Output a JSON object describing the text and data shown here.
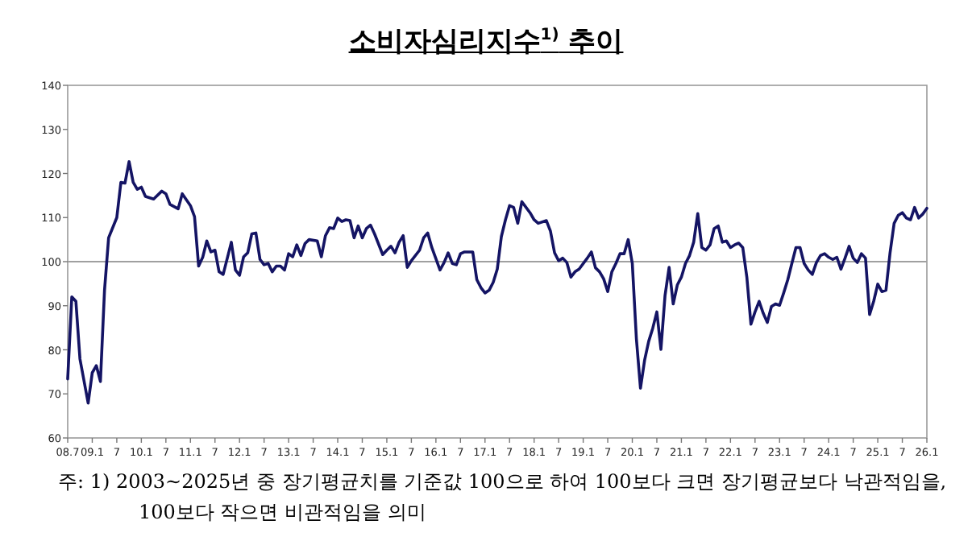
{
  "chart_data": {
    "type": "line",
    "title": "소비자심리지수$^{1)}$ 추이",
    "x": [
      "2008-07",
      "2008-08",
      "2008-09",
      "2008-10",
      "2008-12",
      "2009-01",
      "2009-02",
      "2009-03",
      "2009-04",
      "2009-05",
      "2009-07",
      "2009-08",
      "2009-09",
      "2009-10",
      "2009-11",
      "2009-12",
      "2010-01",
      "2010-02",
      "2010-04",
      "2010-06",
      "2010-07",
      "2010-08",
      "2010-10",
      "2010-11",
      "2011-01",
      "2011-02",
      "2011-03",
      "2011-04",
      "2011-05",
      "2011-06",
      "2011-07",
      "2011-08",
      "2011-09",
      "2011-11",
      "2011-12",
      "2012-01",
      "2012-02",
      "2012-03",
      "2012-04",
      "2012-05",
      "2012-06",
      "2012-07",
      "2012-08",
      "2012-09",
      "2012-10",
      "2012-11",
      "2012-12",
      "2013-01",
      "2013-02",
      "2013-03",
      "2013-04",
      "2013-05",
      "2013-06",
      "2013-08",
      "2013-09",
      "2013-10",
      "2013-11",
      "2013-12",
      "2014-01",
      "2014-02",
      "2014-03",
      "2014-04",
      "2014-05",
      "2014-06",
      "2014-07",
      "2014-08",
      "2014-09",
      "2014-10",
      "2014-12",
      "2015-01",
      "2015-02",
      "2015-03",
      "2015-04",
      "2015-05",
      "2015-06",
      "2015-07",
      "2015-09",
      "2015-10",
      "2015-11",
      "2015-12",
      "2016-02",
      "2016-03",
      "2016-04",
      "2016-05",
      "2016-06",
      "2016-07",
      "2016-08",
      "2016-10",
      "2016-11",
      "2016-12",
      "2017-01",
      "2017-02",
      "2017-03",
      "2017-04",
      "2017-05",
      "2017-06",
      "2017-07",
      "2017-08",
      "2017-09",
      "2017-10",
      "2017-12",
      "2018-01",
      "2018-02",
      "2018-04",
      "2018-05",
      "2018-06",
      "2018-07",
      "2018-08",
      "2018-09",
      "2018-10",
      "2018-11",
      "2018-12",
      "2019-02",
      "2019-03",
      "2019-04",
      "2019-05",
      "2019-06",
      "2019-07",
      "2019-08",
      "2019-09",
      "2019-10",
      "2019-11",
      "2019-12",
      "2020-01",
      "2020-02",
      "2020-03",
      "2020-04",
      "2020-05",
      "2020-06",
      "2020-07",
      "2020-08",
      "2020-09",
      "2020-10",
      "2020-11",
      "2020-12",
      "2021-01",
      "2021-02",
      "2021-03",
      "2021-04",
      "2021-05",
      "2021-06",
      "2021-07",
      "2021-08",
      "2021-09",
      "2021-10",
      "2021-11",
      "2021-12",
      "2022-01",
      "2022-02",
      "2022-03",
      "2022-04",
      "2022-05",
      "2022-06",
      "2022-07",
      "2022-08",
      "2022-09",
      "2022-10",
      "2022-11",
      "2022-12",
      "2023-01",
      "2023-02",
      "2023-03",
      "2023-04",
      "2023-05",
      "2023-06",
      "2023-07",
      "2023-08",
      "2023-09",
      "2023-10",
      "2023-11",
      "2023-12",
      "2024-01",
      "2024-02",
      "2024-03",
      "2024-04",
      "2024-05",
      "2024-06",
      "2024-07",
      "2024-08",
      "2024-09",
      "2024-10",
      "2024-11",
      "2024-12",
      "2025-01",
      "2025-02",
      "2025-03",
      "2025-04",
      "2025-05",
      "2025-06",
      "2025-07",
      "2025-08",
      "2025-09",
      "2025-10",
      "2025-11",
      "2025-12",
      "2026-01"
    ],
    "series": [
      {
        "color": "#141464",
        "values": [
          73.4,
          92.0,
          91,
          77.9,
          67.9,
          74.8,
          76.4,
          72.8,
          93.5,
          105.4,
          110,
          118,
          117.8,
          122.7,
          118,
          116.4,
          116.9,
          114.8,
          114.2,
          116,
          115.4,
          113,
          112,
          115.4,
          112.7,
          110.2,
          99,
          101,
          104.7,
          102.2,
          102.6,
          97.7,
          97.1,
          104.4,
          98.1,
          96.9,
          101.1,
          102,
          106.3,
          106.5,
          100.5,
          99.3,
          99.6,
          97.7,
          99,
          99,
          98.1,
          101.8,
          101.1,
          103.8,
          101.4,
          104.1,
          105,
          104.7,
          101.1,
          105.9,
          107.7,
          107.5,
          109.9,
          109.1,
          109.5,
          109.3,
          105.4,
          108.1,
          105.4,
          107.5,
          108.3,
          106.3,
          101.6,
          102.6,
          103.5,
          102,
          104.4,
          105.9,
          98.7,
          100.2,
          102.6,
          105.4,
          106.5,
          103.2,
          98.1,
          99.8,
          102,
          99.6,
          99.3,
          101.8,
          102.2,
          102.2,
          95.9,
          94.1,
          92.9,
          93.5,
          95.3,
          98.3,
          105.7,
          109.5,
          112.7,
          112.3,
          108.7,
          113.6,
          111.1,
          109.5,
          108.7,
          109.3,
          106.9,
          102,
          100.2,
          100.8,
          99.8,
          96.5,
          97.7,
          98.3,
          100.8,
          102.2,
          98.6,
          97.7,
          96.1,
          93.2,
          97.7,
          99.6,
          101.8,
          101.8,
          105,
          99.6,
          82.5,
          71.3,
          77.6,
          81.9,
          84.9,
          88.6,
          80.1,
          92.3,
          98.7,
          90.4,
          94.7,
          96.5,
          99.6,
          101.4,
          104.4,
          110.9,
          103.2,
          102.6,
          103.8,
          107.5,
          108.1,
          104.4,
          104.7,
          103.2,
          103.8,
          104.2,
          103.2,
          96.5,
          85.8,
          88.6,
          91,
          88.3,
          86.2,
          89.8,
          90.4,
          90.1,
          92.9,
          95.9,
          99.6,
          103.2,
          103.2,
          99.6,
          98.1,
          97.1,
          99.8,
          101.4,
          101.8,
          101,
          100.5,
          101,
          98.3,
          100.8,
          103.5,
          100.8,
          99.8,
          101.8,
          100.8,
          88,
          91,
          94.9,
          93.2,
          93.5,
          102,
          108.7,
          110.5,
          111.1,
          109.9,
          109.5,
          112.3,
          109.9,
          110.8,
          112.1
        ]
      }
    ],
    "xlim": [
      "2008-07",
      "2026-01"
    ],
    "xticks": [
      {
        "value": "2008-07",
        "label": "08.7"
      },
      {
        "value": "2009-01",
        "label": "09.1"
      },
      {
        "value": "2009-07",
        "label": "7"
      },
      {
        "value": "2010-01",
        "label": "10.1"
      },
      {
        "value": "2010-07",
        "label": "7"
      },
      {
        "value": "2011-01",
        "label": "11.1"
      },
      {
        "value": "2011-07",
        "label": "7"
      },
      {
        "value": "2012-01",
        "label": "12.1"
      },
      {
        "value": "2012-07",
        "label": "7"
      },
      {
        "value": "2013-01",
        "label": "13.1"
      },
      {
        "value": "2013-07",
        "label": "7"
      },
      {
        "value": "2014-01",
        "label": "14.1"
      },
      {
        "value": "2014-07",
        "label": "7"
      },
      {
        "value": "2015-01",
        "label": "15.1"
      },
      {
        "value": "2015-07",
        "label": "7"
      },
      {
        "value": "2016-01",
        "label": "16.1"
      },
      {
        "value": "2016-07",
        "label": "7"
      },
      {
        "value": "2017-01",
        "label": "17.1"
      },
      {
        "value": "2017-07",
        "label": "7"
      },
      {
        "value": "2018-01",
        "label": "18.1"
      },
      {
        "value": "2018-07",
        "label": "7"
      },
      {
        "value": "2019-01",
        "label": "19.1"
      },
      {
        "value": "2019-07",
        "label": "7"
      },
      {
        "value": "2020-01",
        "label": "20.1"
      },
      {
        "value": "2020-07",
        "label": "7"
      },
      {
        "value": "2021-01",
        "label": "21.1"
      },
      {
        "value": "2021-07",
        "label": "7"
      },
      {
        "value": "2022-01",
        "label": "22.1"
      },
      {
        "value": "2022-07",
        "label": "7"
      },
      {
        "value": "2023-01",
        "label": "23.1"
      },
      {
        "value": "2023-07",
        "label": "7"
      },
      {
        "value": "2024-01",
        "label": "24.1"
      },
      {
        "value": "2024-07",
        "label": "7"
      },
      {
        "value": "2025-01",
        "label": "25.1"
      },
      {
        "value": "2025-07",
        "label": "7"
      },
      {
        "value": "2026-01",
        "label": "26.1"
      }
    ],
    "ylim": [
      60,
      140
    ],
    "yticks": [
      60,
      70,
      80,
      90,
      100,
      110,
      120,
      130,
      140
    ],
    "ref_lines": [
      {
        "axis": "y",
        "value": 100,
        "color": "#a0a0a0"
      }
    ],
    "grid": false,
    "annotations": [
      "주: 1) 2003~2025년 중 장기평균치를 기준값 100으로 하여 100보다 크면 장기평균보다 낙관적임을, 100보다 작으면 비관적임을 의미"
    ]
  }
}
